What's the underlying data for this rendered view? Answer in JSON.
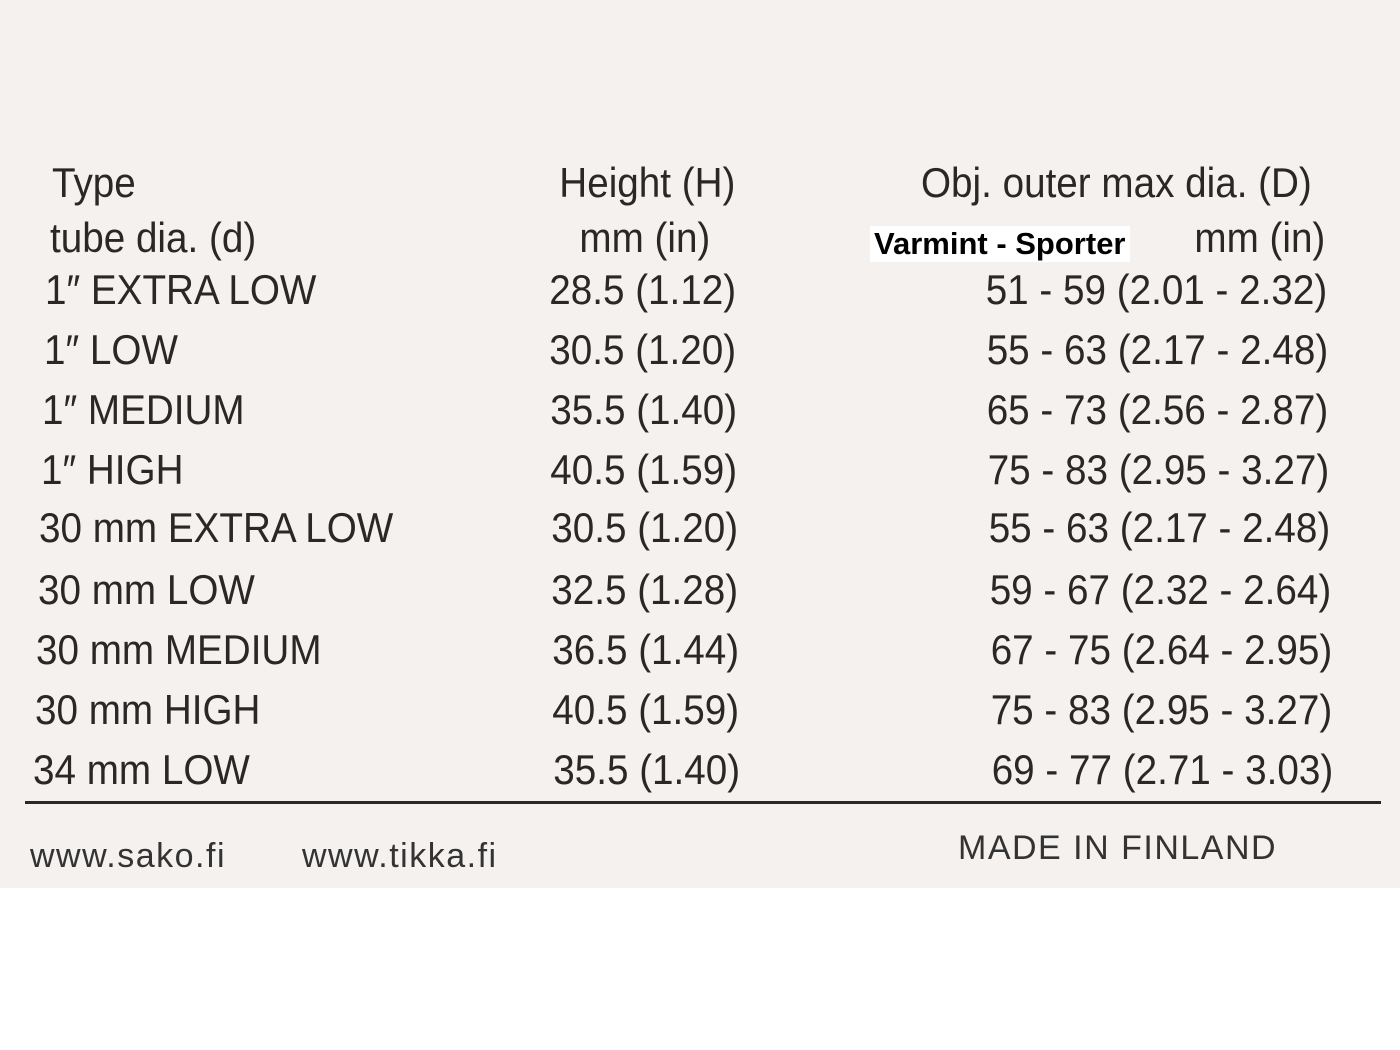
{
  "header": {
    "type": "Type",
    "tube_dia": "tube dia. (d)",
    "height": "Height (H)",
    "height_unit": "mm (in)",
    "obj_dia": "Obj. outer max dia. (D)",
    "obj_variants": "Varmint - Sporter",
    "obj_unit": "mm (in)"
  },
  "table": {
    "rows": [
      [
        "1″ EXTRA LOW",
        "28.5 (1.12)",
        "51 - 59 (2.01 - 2.32)"
      ],
      [
        "1″ LOW",
        "30.5 (1.20)",
        "55 - 63 (2.17 - 2.48)"
      ],
      [
        "1″ MEDIUM",
        "35.5 (1.40)",
        "65 - 73 (2.56 - 2.87)"
      ],
      [
        "1″ HIGH",
        "40.5 (1.59)",
        "75 - 83 (2.95 - 3.27)"
      ],
      [
        "30 mm EXTRA LOW",
        "30.5 (1.20)",
        "55 - 63 (2.17 - 2.48)"
      ],
      [
        "30 mm LOW",
        "32.5 (1.28)",
        "59 - 67 (2.32 - 2.64)"
      ],
      [
        "30 mm MEDIUM",
        "36.5 (1.44)",
        "67 - 75 (2.64 - 2.95)"
      ],
      [
        "30 mm HIGH",
        "40.5 (1.59)",
        "75 - 83 (2.95 - 3.27)"
      ],
      [
        "34 mm LOW",
        "35.5 (1.40)",
        "69 - 77 (2.71 - 3.03)"
      ]
    ]
  },
  "footer": {
    "links": [
      "www.sako.fi",
      "www.tikka.fi"
    ],
    "made_in": "MADE IN FINLAND"
  }
}
